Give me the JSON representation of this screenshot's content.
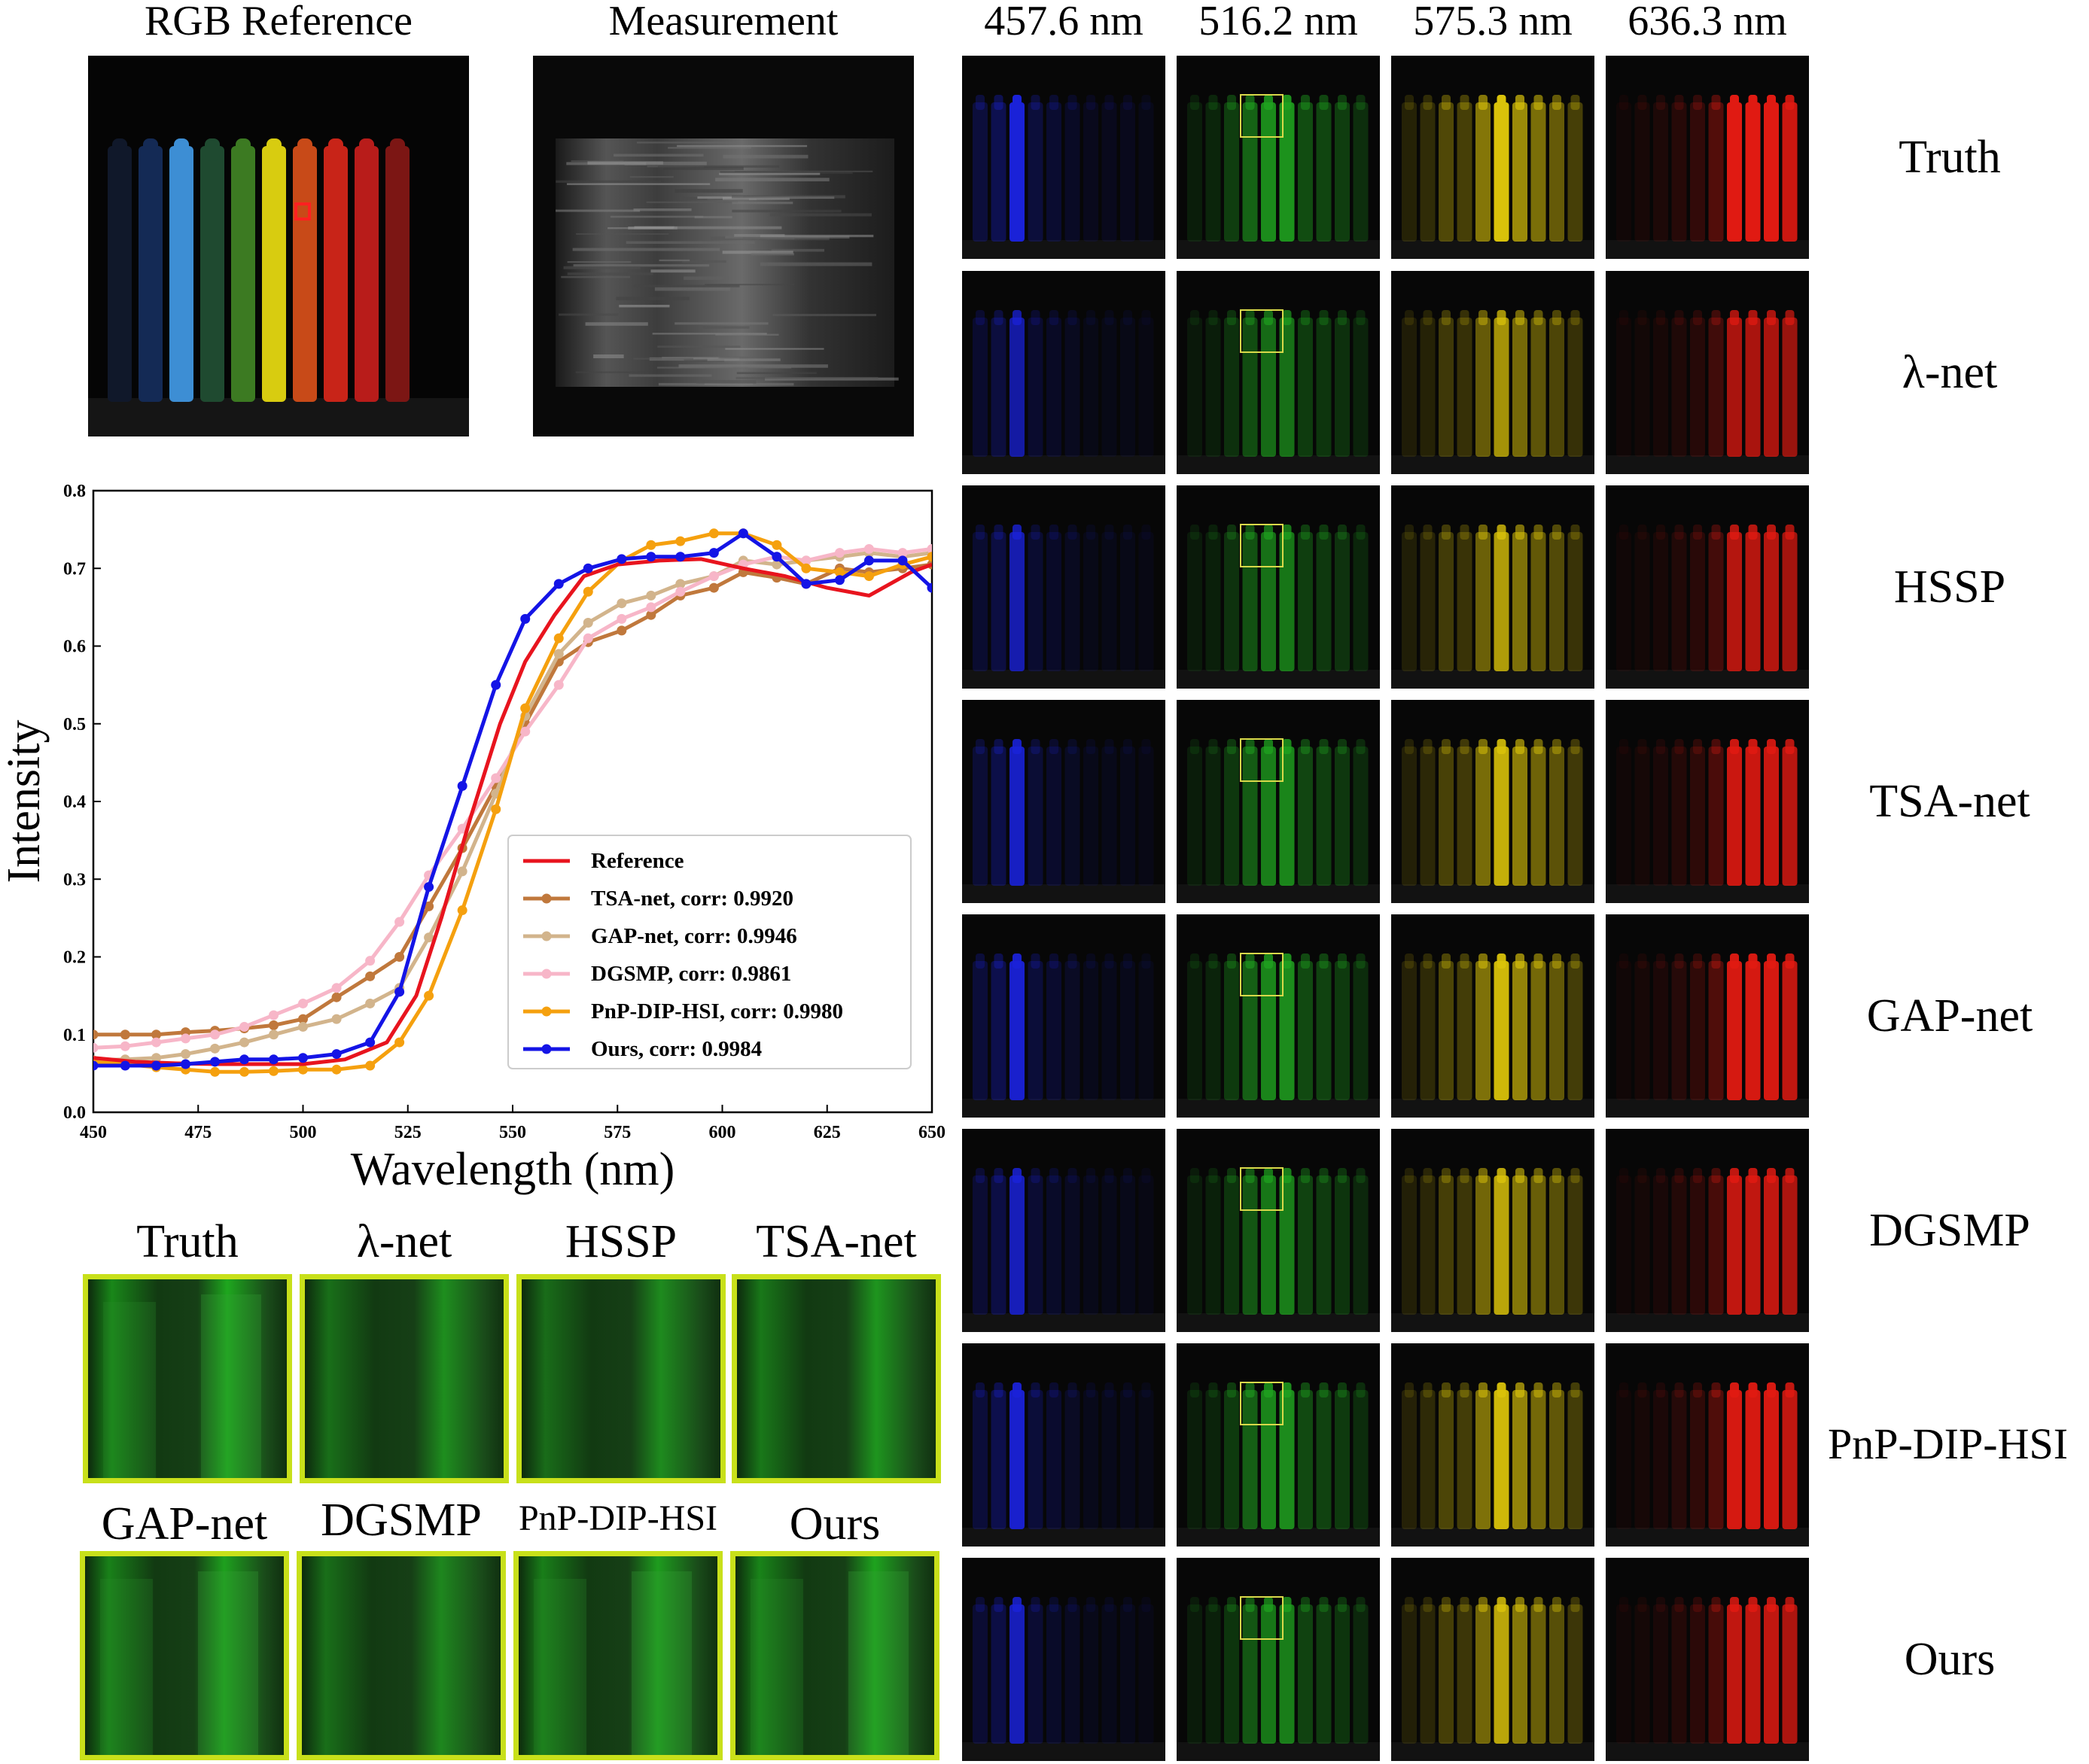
{
  "top": {
    "rgb_title": "RGB Reference",
    "meas_title": "Measurement"
  },
  "wavelengths": [
    "457.6 nm",
    "516.2 nm",
    "575.3 nm",
    "636.3 nm"
  ],
  "methods": [
    "Truth",
    "λ-net",
    "HSSP",
    "TSA-net",
    "GAP-net",
    "DGSMP",
    "PnP-DIP-HSI",
    "Ours"
  ],
  "crop_labels": [
    "Truth",
    "λ-net",
    "HSSP",
    "TSA-net",
    "GAP-net",
    "DGSMP",
    "PnP-DIP-HSI",
    "Ours"
  ],
  "colors": {
    "blue_band": "#1a22d8",
    "green_band": "#1fa21f",
    "yellow_band": "#d9c20a",
    "red_band": "#e01a12",
    "crop_border": "#c8e01a"
  },
  "chart_data": {
    "type": "line",
    "xlabel": "Wavelength (nm)",
    "ylabel": "Intensity",
    "xlim": [
      450,
      650
    ],
    "ylim": [
      0.0,
      0.8
    ],
    "xticks": [
      450,
      475,
      500,
      525,
      550,
      575,
      600,
      625,
      650
    ],
    "yticks": [
      0.0,
      0.1,
      0.2,
      0.3,
      0.4,
      0.5,
      0.6,
      0.7,
      0.8
    ],
    "legend_position": "lower-right",
    "series": [
      {
        "name": "Reference",
        "color": "#e8141e",
        "markers": false,
        "x": [
          450,
          460,
          470,
          480,
          490,
          500,
          510,
          520,
          527,
          533,
          540,
          547,
          553,
          560,
          567,
          575,
          585,
          595,
          605,
          615,
          625,
          635,
          645,
          650
        ],
        "y": [
          0.07,
          0.065,
          0.063,
          0.062,
          0.062,
          0.062,
          0.068,
          0.09,
          0.15,
          0.25,
          0.38,
          0.5,
          0.58,
          0.64,
          0.69,
          0.705,
          0.71,
          0.712,
          0.7,
          0.69,
          0.675,
          0.665,
          0.695,
          0.705
        ]
      },
      {
        "name": "TSA-net, corr: 0.9920",
        "color": "#c0783c",
        "markers": true,
        "x": [
          450,
          457.6,
          465,
          472,
          479,
          486,
          493,
          500,
          508,
          516,
          523,
          530,
          538,
          546,
          553,
          561,
          568,
          576,
          583,
          590,
          598,
          605,
          613,
          620,
          628,
          635,
          643,
          650
        ],
        "y": [
          0.1,
          0.1,
          0.1,
          0.103,
          0.105,
          0.108,
          0.112,
          0.12,
          0.148,
          0.175,
          0.2,
          0.265,
          0.34,
          0.42,
          0.5,
          0.58,
          0.605,
          0.62,
          0.64,
          0.665,
          0.675,
          0.695,
          0.688,
          0.68,
          0.7,
          0.695,
          0.7,
          0.705
        ]
      },
      {
        "name": "GAP-net, corr: 0.9946",
        "color": "#d2b48c",
        "markers": true,
        "x": [
          450,
          457.6,
          465,
          472,
          479,
          486,
          493,
          500,
          508,
          516,
          523,
          530,
          538,
          546,
          553,
          561,
          568,
          576,
          583,
          590,
          598,
          605,
          613,
          620,
          628,
          635,
          643,
          650
        ],
        "y": [
          0.067,
          0.068,
          0.07,
          0.075,
          0.082,
          0.09,
          0.1,
          0.11,
          0.12,
          0.14,
          0.16,
          0.225,
          0.31,
          0.41,
          0.51,
          0.59,
          0.63,
          0.655,
          0.665,
          0.68,
          0.69,
          0.71,
          0.705,
          0.71,
          0.715,
          0.72,
          0.715,
          0.72
        ]
      },
      {
        "name": "DGSMP, corr: 0.9861",
        "color": "#f7b6c8",
        "markers": true,
        "x": [
          450,
          457.6,
          465,
          472,
          479,
          486,
          493,
          500,
          508,
          516,
          523,
          530,
          538,
          546,
          553,
          561,
          568,
          576,
          583,
          590,
          598,
          605,
          613,
          620,
          628,
          635,
          643,
          650
        ],
        "y": [
          0.083,
          0.085,
          0.09,
          0.095,
          0.1,
          0.11,
          0.125,
          0.14,
          0.16,
          0.195,
          0.245,
          0.305,
          0.365,
          0.43,
          0.49,
          0.55,
          0.61,
          0.635,
          0.65,
          0.67,
          0.69,
          0.705,
          0.715,
          0.71,
          0.72,
          0.725,
          0.72,
          0.725
        ]
      },
      {
        "name": "PnP-DIP-HSI, corr: 0.9980",
        "color": "#f5a00e",
        "markers": true,
        "x": [
          450,
          457.6,
          465,
          472,
          479,
          486,
          493,
          500,
          508,
          516,
          523,
          530,
          538,
          546,
          553,
          561,
          568,
          576,
          583,
          590,
          598,
          605,
          613,
          620,
          628,
          635,
          643,
          650
        ],
        "y": [
          0.065,
          0.062,
          0.058,
          0.055,
          0.052,
          0.052,
          0.053,
          0.055,
          0.055,
          0.06,
          0.09,
          0.15,
          0.26,
          0.39,
          0.52,
          0.61,
          0.67,
          0.71,
          0.73,
          0.735,
          0.745,
          0.745,
          0.73,
          0.7,
          0.695,
          0.69,
          0.705,
          0.715
        ]
      },
      {
        "name": "Ours, corr: 0.9984",
        "color": "#1414e6",
        "markers": true,
        "x": [
          450,
          457.6,
          465,
          472,
          479,
          486,
          493,
          500,
          508,
          516,
          523,
          530,
          538,
          546,
          553,
          561,
          568,
          576,
          583,
          590,
          598,
          605,
          613,
          620,
          628,
          635,
          643,
          650
        ],
        "y": [
          0.06,
          0.06,
          0.06,
          0.062,
          0.065,
          0.068,
          0.068,
          0.07,
          0.075,
          0.09,
          0.155,
          0.29,
          0.42,
          0.55,
          0.635,
          0.68,
          0.7,
          0.712,
          0.715,
          0.715,
          0.72,
          0.745,
          0.715,
          0.68,
          0.685,
          0.71,
          0.71,
          0.675
        ]
      }
    ]
  }
}
